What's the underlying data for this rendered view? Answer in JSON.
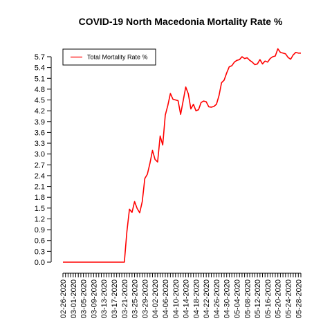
{
  "chart_data": {
    "type": "line",
    "title": "COVID-19 North Macedonia Mortality Rate %",
    "xlabel": "",
    "ylabel": "",
    "ylim": [
      0.0,
      5.85
    ],
    "y_ticks": [
      "0.0",
      "0.3",
      "0.6",
      "0.9",
      "1.2",
      "1.5",
      "1.8",
      "2.1",
      "2.4",
      "2.7",
      "3.0",
      "3.3",
      "3.6",
      "3.9",
      "4.2",
      "4.5",
      "4.8",
      "5.1",
      "5.4",
      "5.7"
    ],
    "x_start": "2020-02-26",
    "x_end": "2020-05-29",
    "x_tick_labels": [
      "02-26-2020",
      "03-01-2020",
      "03-05-2020",
      "03-09-2020",
      "03-13-2020",
      "03-17-2020",
      "03-21-2020",
      "03-25-2020",
      "03-29-2020",
      "04-02-2020",
      "04-06-2020",
      "04-10-2020",
      "04-14-2020",
      "04-18-2020",
      "04-22-2020",
      "04-26-2020",
      "04-30-2020",
      "05-04-2020",
      "05-08-2020",
      "05-12-2020",
      "05-16-2020",
      "05-20-2020",
      "05-24-2020",
      "05-28-2020"
    ],
    "legend": {
      "position": "top-left",
      "entries": [
        "Total Mortality Rate %"
      ]
    },
    "grid": false,
    "colors": {
      "series": "#ff0000",
      "axis": "#000000"
    },
    "series": [
      {
        "name": "Total Mortality Rate %",
        "x": [
          "2020-02-26",
          "2020-02-27",
          "2020-02-28",
          "2020-02-29",
          "2020-03-01",
          "2020-03-02",
          "2020-03-03",
          "2020-03-04",
          "2020-03-05",
          "2020-03-06",
          "2020-03-07",
          "2020-03-08",
          "2020-03-09",
          "2020-03-10",
          "2020-03-11",
          "2020-03-12",
          "2020-03-13",
          "2020-03-14",
          "2020-03-15",
          "2020-03-16",
          "2020-03-17",
          "2020-03-18",
          "2020-03-19",
          "2020-03-20",
          "2020-03-21",
          "2020-03-22",
          "2020-03-23",
          "2020-03-24",
          "2020-03-25",
          "2020-03-26",
          "2020-03-27",
          "2020-03-28",
          "2020-03-29",
          "2020-03-30",
          "2020-03-31",
          "2020-04-01",
          "2020-04-02",
          "2020-04-03",
          "2020-04-04",
          "2020-04-05",
          "2020-04-06",
          "2020-04-07",
          "2020-04-08",
          "2020-04-09",
          "2020-04-10",
          "2020-04-11",
          "2020-04-12",
          "2020-04-13",
          "2020-04-14",
          "2020-04-15",
          "2020-04-16",
          "2020-04-17",
          "2020-04-18",
          "2020-04-19",
          "2020-04-20",
          "2020-04-21",
          "2020-04-22",
          "2020-04-23",
          "2020-04-24",
          "2020-04-25",
          "2020-04-26",
          "2020-04-27",
          "2020-04-28",
          "2020-04-29",
          "2020-04-30",
          "2020-05-01",
          "2020-05-02",
          "2020-05-03",
          "2020-05-04",
          "2020-05-05",
          "2020-05-06",
          "2020-05-07",
          "2020-05-08",
          "2020-05-09",
          "2020-05-10",
          "2020-05-11",
          "2020-05-12",
          "2020-05-13",
          "2020-05-14",
          "2020-05-15",
          "2020-05-16",
          "2020-05-17",
          "2020-05-18",
          "2020-05-19",
          "2020-05-20",
          "2020-05-21",
          "2020-05-22",
          "2020-05-23",
          "2020-05-24",
          "2020-05-25",
          "2020-05-26",
          "2020-05-27",
          "2020-05-28",
          "2020-05-29"
        ],
        "values": [
          0,
          0,
          0,
          0,
          0,
          0,
          0,
          0,
          0,
          0,
          0,
          0,
          0,
          0,
          0,
          0,
          0,
          0,
          0,
          0,
          0,
          0,
          0,
          0,
          0,
          0.85,
          1.47,
          1.38,
          1.68,
          1.49,
          1.37,
          1.68,
          2.32,
          2.44,
          2.74,
          3.1,
          2.85,
          2.78,
          3.5,
          3.25,
          4.08,
          4.35,
          4.68,
          4.52,
          4.5,
          4.48,
          4.1,
          4.48,
          4.86,
          4.67,
          4.25,
          4.38,
          4.2,
          4.23,
          4.43,
          4.47,
          4.45,
          4.31,
          4.3,
          4.32,
          4.38,
          4.62,
          4.98,
          5.05,
          5.25,
          5.42,
          5.45,
          5.55,
          5.6,
          5.62,
          5.7,
          5.65,
          5.67,
          5.6,
          5.55,
          5.48,
          5.5,
          5.62,
          5.5,
          5.58,
          5.55,
          5.65,
          5.7,
          5.72,
          5.92,
          5.82,
          5.8,
          5.78,
          5.68,
          5.63,
          5.75,
          5.82,
          5.8,
          5.8
        ]
      }
    ]
  }
}
